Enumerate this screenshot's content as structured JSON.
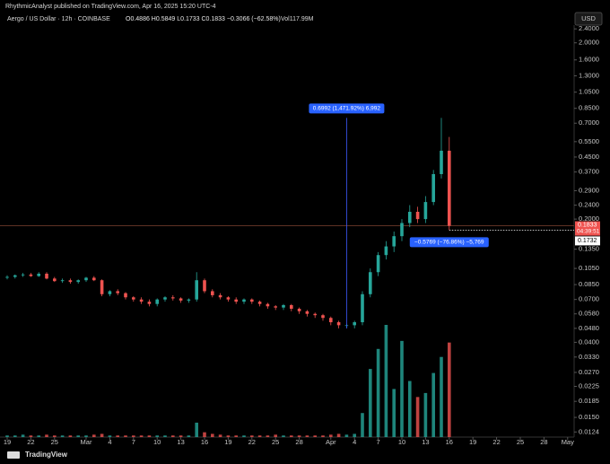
{
  "header": {
    "source": "RhythmicAnalyst published on TradingView.com, Apr 16, 2025 15:20 UTC-4",
    "symbol": "Aergo / US Dollar · 12h · COINBASE",
    "ohlc": "O0.4886 H0.5849 L0.1733 C0.1833 −0.3066 (−62.58%)",
    "volume_label": "Vol117.99M",
    "currency": "USD"
  },
  "footer": {
    "brand": "TradingView"
  },
  "chart_data": {
    "type": "candlestick",
    "log_scale": true,
    "up_color": "#26a69a",
    "down_color": "#ef5350",
    "ylim": [
      0.0116,
      2.52
    ],
    "yticks": [
      {
        "value": 2.4,
        "label": "2.4000"
      },
      {
        "value": 2,
        "label": "2.0000"
      },
      {
        "value": 1.6,
        "label": "1.6000"
      },
      {
        "value": 1.3,
        "label": "1.3000"
      },
      {
        "value": 1.05,
        "label": "1.0500"
      },
      {
        "value": 0.85,
        "label": "0.8500"
      },
      {
        "value": 0.7,
        "label": "0.7000"
      },
      {
        "value": 0.55,
        "label": "0.5500"
      },
      {
        "value": 0.45,
        "label": "0.4500"
      },
      {
        "value": 0.37,
        "label": "0.3700"
      },
      {
        "value": 0.29,
        "label": "0.2900"
      },
      {
        "value": 0.24,
        "label": "0.2400"
      },
      {
        "value": 0.2,
        "label": "0.2000"
      },
      {
        "value": 0.135,
        "label": "0.1350"
      },
      {
        "value": 0.105,
        "label": "0.1050"
      },
      {
        "value": 0.085,
        "label": "0.0850"
      },
      {
        "value": 0.07,
        "label": "0.0700"
      },
      {
        "value": 0.058,
        "label": "0.0580"
      },
      {
        "value": 0.048,
        "label": "0.0480"
      },
      {
        "value": 0.04,
        "label": "0.0400"
      },
      {
        "value": 0.033,
        "label": "0.0330"
      },
      {
        "value": 0.027,
        "label": "0.0270"
      },
      {
        "value": 0.0225,
        "label": "0.0225"
      },
      {
        "value": 0.0185,
        "label": "0.0185"
      },
      {
        "value": 0.015,
        "label": "0.0150"
      },
      {
        "value": 0.0124,
        "label": "0.0124"
      }
    ],
    "xlim": [
      -0.91,
      71.82
    ],
    "xticks": [
      {
        "value": 0,
        "label": "19"
      },
      {
        "value": 3,
        "label": "22"
      },
      {
        "value": 6,
        "label": "25"
      },
      {
        "value": 10,
        "label": "Mar"
      },
      {
        "value": 13,
        "label": "4"
      },
      {
        "value": 16,
        "label": "7"
      },
      {
        "value": 19,
        "label": "10"
      },
      {
        "value": 22,
        "label": "13"
      },
      {
        "value": 25,
        "label": "16"
      },
      {
        "value": 28,
        "label": "19"
      },
      {
        "value": 31,
        "label": "22"
      },
      {
        "value": 34,
        "label": "25"
      },
      {
        "value": 37,
        "label": "28"
      },
      {
        "value": 41,
        "label": "Apr"
      },
      {
        "value": 44,
        "label": "4"
      },
      {
        "value": 47,
        "label": "7"
      },
      {
        "value": 50,
        "label": "10"
      },
      {
        "value": 53,
        "label": "13"
      },
      {
        "value": 56,
        "label": "16"
      },
      {
        "value": 59,
        "label": "19"
      },
      {
        "value": 62,
        "label": "22"
      },
      {
        "value": 65,
        "label": "25"
      },
      {
        "value": 68,
        "label": "28"
      },
      {
        "value": 71,
        "label": "May"
      }
    ],
    "x": [
      0,
      1,
      2,
      3,
      4,
      5,
      6,
      7,
      8,
      9,
      10,
      11,
      12,
      13,
      14,
      15,
      16,
      17,
      18,
      19,
      20,
      21,
      22,
      23,
      24,
      25,
      26,
      27,
      28,
      29,
      30,
      31,
      32,
      33,
      34,
      35,
      36,
      37,
      38,
      39,
      40,
      41,
      42,
      43,
      44,
      45,
      46,
      47,
      48,
      49,
      50,
      51,
      52,
      53,
      54,
      55,
      56
    ],
    "open": [
      0.093,
      0.094,
      0.096,
      0.097,
      0.095,
      0.098,
      0.092,
      0.089,
      0.09,
      0.088,
      0.09,
      0.093,
      0.09,
      0.075,
      0.078,
      0.076,
      0.072,
      0.07,
      0.068,
      0.066,
      0.07,
      0.072,
      0.071,
      0.069,
      0.07,
      0.09,
      0.078,
      0.074,
      0.072,
      0.07,
      0.068,
      0.07,
      0.068,
      0.066,
      0.064,
      0.063,
      0.065,
      0.062,
      0.06,
      0.058,
      0.057,
      0.055,
      0.052,
      0.05,
      0.05,
      0.052,
      0.075,
      0.1,
      0.125,
      0.14,
      0.16,
      0.19,
      0.22,
      0.2,
      0.25,
      0.36,
      0.4886
    ],
    "high": [
      0.096,
      0.097,
      0.099,
      0.099,
      0.1,
      0.1,
      0.094,
      0.092,
      0.092,
      0.091,
      0.094,
      0.095,
      0.091,
      0.079,
      0.08,
      0.077,
      0.073,
      0.072,
      0.07,
      0.071,
      0.073,
      0.074,
      0.072,
      0.071,
      0.1,
      0.092,
      0.08,
      0.076,
      0.073,
      0.072,
      0.071,
      0.071,
      0.069,
      0.067,
      0.065,
      0.066,
      0.066,
      0.063,
      0.061,
      0.059,
      0.058,
      0.056,
      0.053,
      0.051,
      0.053,
      0.078,
      0.105,
      0.13,
      0.15,
      0.17,
      0.2,
      0.24,
      0.235,
      0.27,
      0.38,
      0.75,
      0.5849
    ],
    "low": [
      0.091,
      0.092,
      0.094,
      0.094,
      0.094,
      0.091,
      0.088,
      0.087,
      0.086,
      0.086,
      0.088,
      0.089,
      0.073,
      0.073,
      0.074,
      0.07,
      0.068,
      0.066,
      0.064,
      0.064,
      0.068,
      0.069,
      0.067,
      0.067,
      0.068,
      0.076,
      0.072,
      0.07,
      0.068,
      0.066,
      0.066,
      0.066,
      0.064,
      0.062,
      0.061,
      0.061,
      0.06,
      0.058,
      0.056,
      0.055,
      0.053,
      0.05,
      0.048,
      0.048,
      0.048,
      0.05,
      0.072,
      0.095,
      0.118,
      0.13,
      0.15,
      0.18,
      0.19,
      0.19,
      0.24,
      0.34,
      0.1733
    ],
    "close": [
      0.094,
      0.096,
      0.097,
      0.095,
      0.098,
      0.092,
      0.089,
      0.09,
      0.088,
      0.09,
      0.093,
      0.09,
      0.075,
      0.078,
      0.076,
      0.072,
      0.07,
      0.068,
      0.066,
      0.07,
      0.072,
      0.071,
      0.069,
      0.07,
      0.09,
      0.078,
      0.074,
      0.072,
      0.07,
      0.068,
      0.07,
      0.068,
      0.066,
      0.064,
      0.063,
      0.065,
      0.062,
      0.06,
      0.058,
      0.057,
      0.055,
      0.052,
      0.05,
      0.05,
      0.052,
      0.075,
      0.1,
      0.125,
      0.14,
      0.16,
      0.19,
      0.22,
      0.2,
      0.25,
      0.36,
      0.4886,
      0.1833
    ],
    "volume": [
      2,
      2,
      3,
      2,
      2,
      3,
      2,
      2,
      2,
      2,
      2,
      3,
      4,
      2,
      2,
      2,
      2,
      2,
      2,
      2,
      2,
      2,
      2,
      2,
      18,
      6,
      4,
      3,
      2,
      2,
      2,
      2,
      2,
      2,
      3,
      2,
      2,
      2,
      2,
      2,
      2,
      3,
      4,
      3,
      4,
      30,
      85,
      110,
      140,
      60,
      120,
      70,
      50,
      55,
      80,
      100,
      117.99
    ],
    "annotations": [
      "0.6992 (1,471.92%) 6,992",
      "−0.5769 (−76.86%) −5,769"
    ],
    "price_labels": [
      {
        "value": 0.1833,
        "label": "0.1833"
      },
      {
        "value": 0.1732,
        "label": "0.1732"
      }
    ],
    "countdown": "04:39:51"
  }
}
